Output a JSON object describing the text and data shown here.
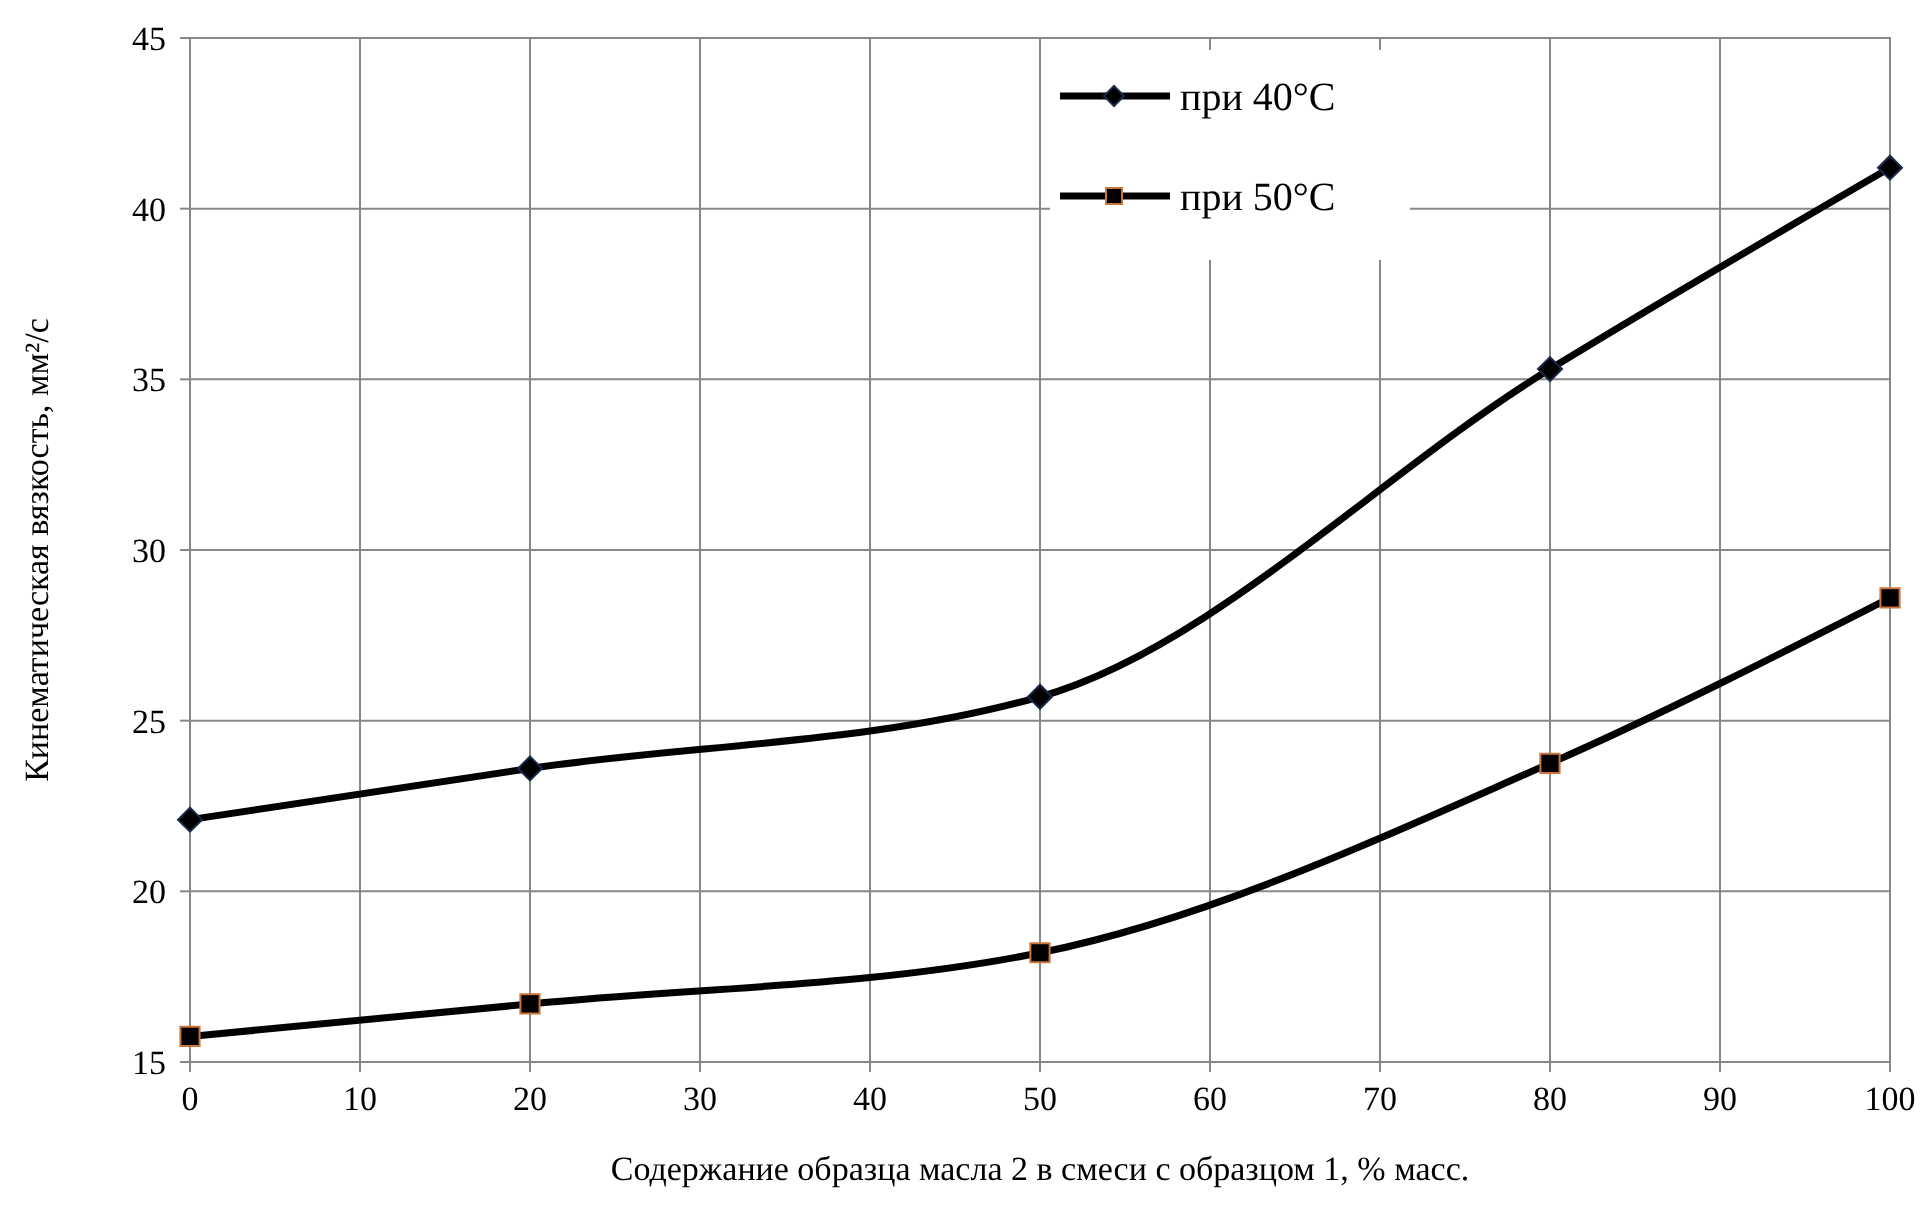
{
  "chart_data": {
    "type": "line",
    "xlabel": "Содержание образца масла 2 в смеси с образцом 1, % масс.",
    "ylabel": "Кинематическая вязкость, мм²/с",
    "x": [
      0,
      20,
      50,
      80,
      100
    ],
    "series": [
      {
        "name": "при 40°C",
        "color": "#000000",
        "marker": "diamond",
        "values": [
          22.1,
          23.6,
          25.7,
          35.3,
          41.2
        ]
      },
      {
        "name": "при 50°C",
        "color": "#000000",
        "marker": "square",
        "values": [
          15.75,
          16.7,
          18.2,
          23.75,
          28.6
        ]
      }
    ],
    "xlim": [
      0,
      100
    ],
    "xticks": [
      0,
      10,
      20,
      30,
      40,
      50,
      60,
      70,
      80,
      90,
      100
    ],
    "ylim": [
      15,
      45
    ],
    "yticks": [
      15,
      20,
      25,
      30,
      35,
      40,
      45
    ],
    "grid": true,
    "legend": "top",
    "line_style": "solid"
  }
}
